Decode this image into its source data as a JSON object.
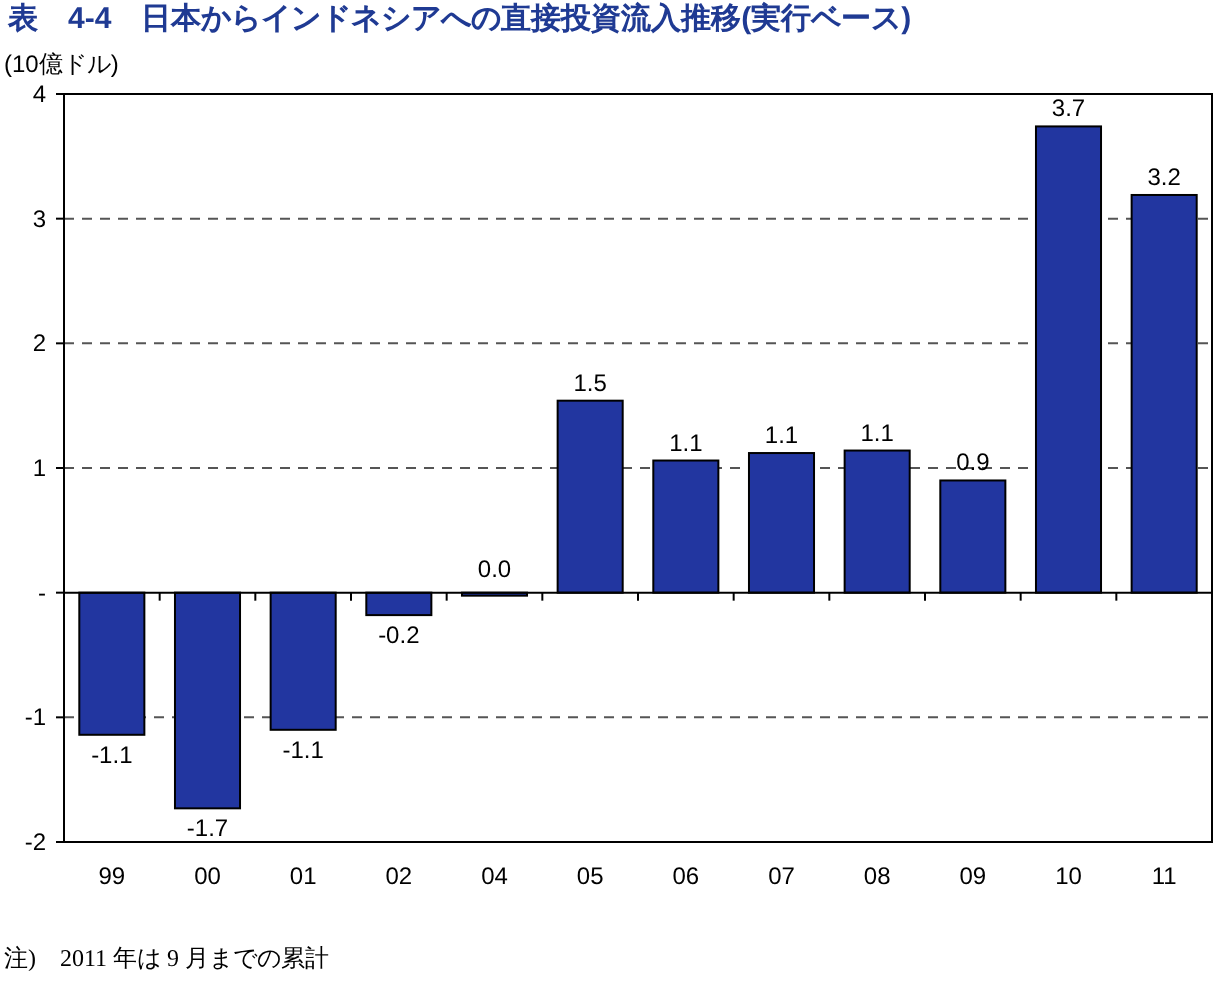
{
  "chart_data": {
    "type": "bar",
    "title": "表　4-4　日本からインドネシアへの直接投資流入推移(実行ベース)",
    "ylabel": "(10億ドル)",
    "categories": [
      "99",
      "00",
      "01",
      "02",
      "04",
      "05",
      "06",
      "07",
      "08",
      "09",
      "10",
      "11"
    ],
    "values": [
      -1.14,
      -1.73,
      -1.1,
      -0.18,
      -0.02,
      1.54,
      1.06,
      1.12,
      1.14,
      0.9,
      3.74,
      3.19
    ],
    "value_labels": [
      "-1.1",
      "-1.7",
      "-1.1",
      "-0.2",
      "0.0",
      "1.5",
      "1.1",
      "1.1",
      "1.1",
      "0.9",
      "3.7",
      "3.2"
    ],
    "color": "#2236a0",
    "ylim": [
      -2,
      4
    ],
    "yticks": [
      -2,
      -1,
      {
        "value": 0,
        "label": "-"
      },
      1,
      2,
      3,
      4
    ],
    "grid": "y",
    "annotations": [
      "注)　2011 年は 9 月までの累計"
    ]
  }
}
